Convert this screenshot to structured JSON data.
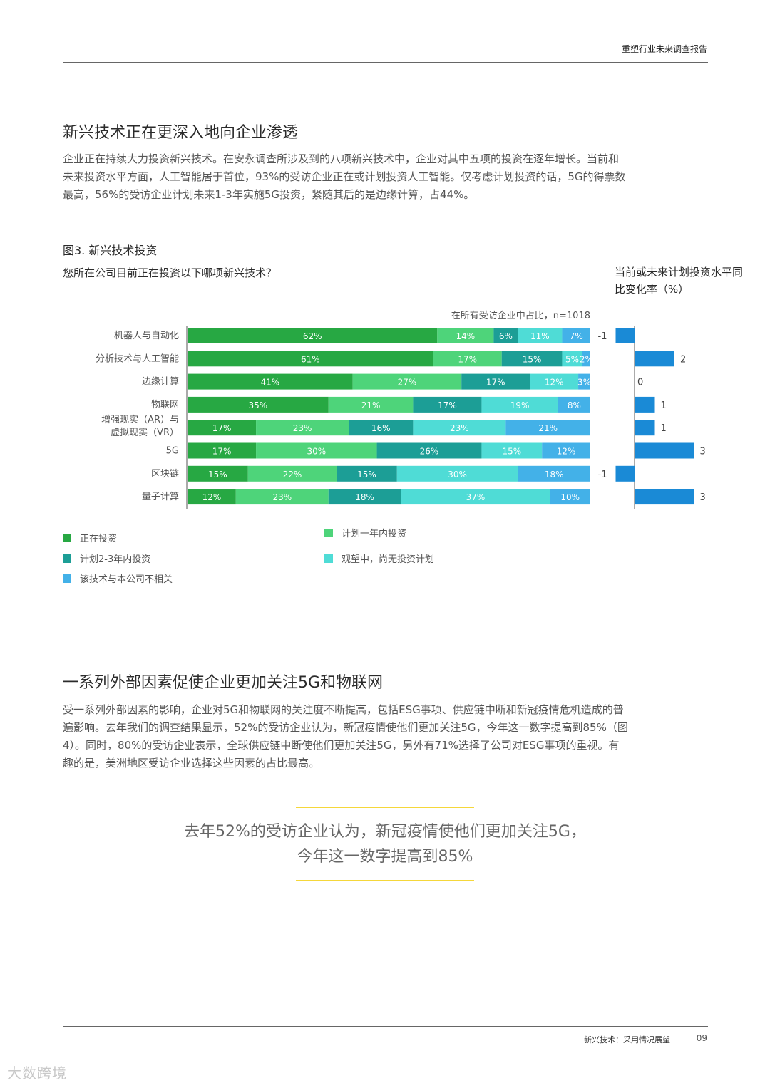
{
  "header": {
    "title": "重塑行业未来调查报告"
  },
  "section1": {
    "heading": "新兴技术正在更深入地向企业渗透",
    "paragraph_lines": [
      "企业正在持续大力投资新兴技术。在安永调查所涉及到的八项新兴技术中，企业对其中五项的投资在逐年增长。当前和",
      "未来投资水平方面，人工智能居于首位，93%的受访企业正在或计划投资人工智能。仅考虑计划投资的话，5G的得票数",
      "最高，56%的受访企业计划未来1-3年实施5G投资，紧随其后的是边缘计算，占44%。"
    ]
  },
  "figure": {
    "title": "图3. 新兴技术投资",
    "question": "您所在公司目前正在投资以下哪项新兴技术？",
    "right_header": "当前或未来计划投资水平同比变化率（%）",
    "sample_note": "在所有受访企业中占比，n=1018"
  },
  "chart_data": [
    {
      "type": "bar",
      "stacked": true,
      "orientation": "horizontal",
      "categories": [
        "机器人与自动化",
        "分析技术与人工智能",
        "边缘计算",
        "物联网",
        "增强现实（AR）与虚拟现实（VR）",
        "5G",
        "区块链",
        "量子计算"
      ],
      "category_lines": [
        [
          "机器人与自动化"
        ],
        [
          "分析技术与人工智能"
        ],
        [
          "边缘计算"
        ],
        [
          "物联网"
        ],
        [
          "增强现实（AR）与",
          "虚拟现实（VR）"
        ],
        [
          "5G"
        ],
        [
          "区块链"
        ],
        [
          "量子计算"
        ]
      ],
      "series": [
        {
          "name": "正在投资",
          "color": "#27a843",
          "values": [
            62,
            61,
            41,
            35,
            17,
            17,
            15,
            12
          ]
        },
        {
          "name": "计划一年内投资",
          "color": "#4ed47a",
          "values": [
            14,
            17,
            27,
            21,
            23,
            30,
            22,
            23
          ]
        },
        {
          "name": "计划2-3年内投资",
          "color": "#1c9e96",
          "values": [
            6,
            15,
            17,
            17,
            16,
            26,
            15,
            18
          ]
        },
        {
          "name": "观望中，尚无投资计划",
          "color": "#4fdcd6",
          "values": [
            11,
            5,
            12,
            19,
            23,
            15,
            30,
            37
          ]
        },
        {
          "name": "该技术与本公司不相关",
          "color": "#43b1e8",
          "values": [
            7,
            2,
            3,
            8,
            21,
            12,
            18,
            10
          ]
        }
      ],
      "xlim": [
        0,
        100
      ]
    },
    {
      "type": "bar",
      "orientation": "horizontal",
      "categories": [
        "机器人与自动化",
        "分析技术与人工智能",
        "边缘计算",
        "物联网",
        "增强现实（AR）与虚拟现实（VR）",
        "5G",
        "区块链",
        "量子计算"
      ],
      "values": [
        -1,
        2,
        0,
        1,
        1,
        3,
        -1,
        3
      ],
      "color": "#1a8ad6"
    }
  ],
  "legend": [
    {
      "label": "正在投资",
      "color": "#27a843"
    },
    {
      "label": "计划一年内投资",
      "color": "#4ed47a"
    },
    {
      "label": "计划2-3年内投资",
      "color": "#1c9e96"
    },
    {
      "label": "观望中，尚无投资计划",
      "color": "#4fdcd6"
    },
    {
      "label": "该技术与本公司不相关",
      "color": "#43b1e8"
    }
  ],
  "section2": {
    "heading": "一系列外部因素促使企业更加关注5G和物联网",
    "paragraph_lines": [
      "受一系列外部因素的影响，企业对5G和物联网的关注度不断提高，包括ESG事项、供应链中断和新冠疫情危机造成的普",
      "遍影响。去年我们的调查结果显示，52%的受访企业认为，新冠疫情使他们更加关注5G，今年这一数字提高到85%（图",
      "4）。同时，80%的受访企业表示，全球供应链中断使他们更加关注5G，另外有71%选择了公司对ESG事项的重视。有",
      "趣的是，美洲地区受访企业选择这些因素的占比最高。"
    ]
  },
  "quote": {
    "line1": "去年52%的受访企业认为，新冠疫情使他们更加关注5G，",
    "line2": "今年这一数字提高到85%"
  },
  "footer": {
    "text": "新兴技术：采用情况展望",
    "page": "09"
  },
  "watermark": "大数跨境"
}
